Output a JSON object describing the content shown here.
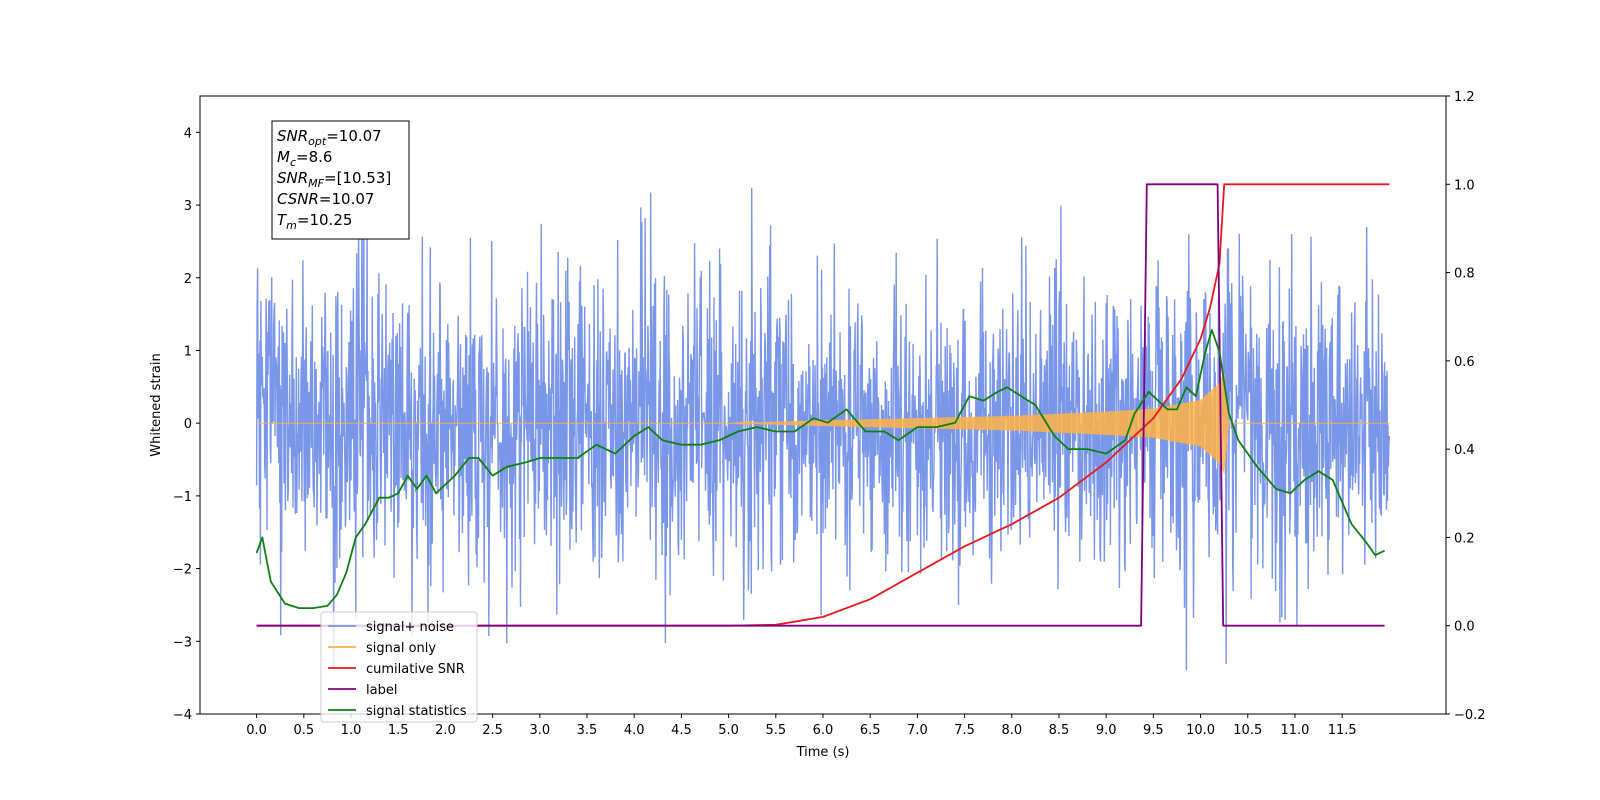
{
  "chart_data": {
    "type": "line",
    "xlabel": "Time (s)",
    "ylabel": "Whitened strain",
    "xlim": [
      -0.6,
      12.6
    ],
    "ylim": [
      -4,
      4.5
    ],
    "y2lim": [
      -0.2,
      1.2
    ],
    "x_ticks": [
      "0.0",
      "0.5",
      "1.0",
      "1.5",
      "2.0",
      "2.5",
      "3.0",
      "3.5",
      "4.0",
      "4.5",
      "5.0",
      "5.5",
      "6.0",
      "6.5",
      "7.0",
      "7.5",
      "8.0",
      "8.5",
      "9.0",
      "9.5",
      "10.0",
      "10.5",
      "11.0",
      "11.5"
    ],
    "y_ticks": [
      "4",
      "3",
      "2",
      "1",
      "0",
      "−1",
      "−2",
      "−3",
      "−4"
    ],
    "y2_ticks": [
      "1.2",
      "1.0",
      "0.8",
      "0.6",
      "0.4",
      "0.2",
      "0.0",
      "−0.2"
    ],
    "grid": false,
    "legend_position": "lower-left",
    "annotation": {
      "lines": [
        {
          "base": "SNR",
          "sub": "opt",
          "rest": "=10.07"
        },
        {
          "base": "M",
          "sub": "c",
          "rest": "=8.6"
        },
        {
          "base": "SNR",
          "sub": "MF",
          "rest": "=[10.53]"
        },
        {
          "base": "CSNR",
          "sub": "",
          "rest": "=10.07"
        },
        {
          "base": "T",
          "sub": "m",
          "rest": "=10.25"
        }
      ]
    },
    "series": [
      {
        "name": "signal+ noise",
        "color": "#7a96e8",
        "axis": "left",
        "description": "whitened noise, roughly ±1 sigma with peaks to about ±3.5",
        "x_range": [
          0,
          12
        ],
        "amplitude_sigma": 1.0
      },
      {
        "name": "signal only",
        "color": "#ffb347",
        "axis": "left",
        "description": "chirp growing from 0 to about ±0.7 at 10.25 s, then ringdown",
        "x": [
          0,
          5.0,
          6.0,
          7.0,
          8.0,
          9.0,
          9.5,
          10.0,
          10.2,
          10.25,
          10.3,
          12.0
        ],
        "envelope": [
          0.0,
          0.0,
          0.04,
          0.07,
          0.1,
          0.16,
          0.2,
          0.32,
          0.55,
          0.7,
          0.0,
          0.0
        ]
      },
      {
        "name": "cumilative SNR",
        "color": "#e8191c",
        "axis": "right",
        "x": [
          0,
          5.0,
          5.5,
          6.0,
          6.5,
          7.0,
          7.5,
          8.0,
          8.5,
          9.0,
          9.5,
          9.8,
          10.0,
          10.1,
          10.2,
          10.25,
          12.0
        ],
        "y": [
          0.0,
          0.0,
          0.002,
          0.02,
          0.06,
          0.12,
          0.18,
          0.23,
          0.29,
          0.37,
          0.47,
          0.56,
          0.65,
          0.72,
          0.82,
          1.0,
          1.0
        ]
      },
      {
        "name": "label",
        "color": "#800080",
        "axis": "right",
        "x": [
          0,
          9.37,
          9.43,
          10.18,
          10.24,
          11.95
        ],
        "y": [
          0.0,
          0.0,
          1.0,
          1.0,
          0.0,
          0.0
        ]
      },
      {
        "name": "signal statistics",
        "color": "#108010",
        "axis": "right",
        "x": [
          0.0,
          0.06,
          0.15,
          0.3,
          0.45,
          0.6,
          0.75,
          0.85,
          0.95,
          1.05,
          1.15,
          1.3,
          1.4,
          1.5,
          1.6,
          1.7,
          1.8,
          1.9,
          2.0,
          2.1,
          2.25,
          2.35,
          2.5,
          2.65,
          2.85,
          3.0,
          3.2,
          3.4,
          3.6,
          3.8,
          4.0,
          4.15,
          4.3,
          4.5,
          4.7,
          4.9,
          5.1,
          5.3,
          5.5,
          5.7,
          5.9,
          6.05,
          6.25,
          6.45,
          6.65,
          6.8,
          7.0,
          7.2,
          7.4,
          7.55,
          7.7,
          7.85,
          7.95,
          8.1,
          8.25,
          8.45,
          8.6,
          8.8,
          9.0,
          9.2,
          9.3,
          9.45,
          9.55,
          9.65,
          9.75,
          9.85,
          9.95,
          10.05,
          10.12,
          10.2,
          10.3,
          10.4,
          10.6,
          10.8,
          10.95,
          11.1,
          11.25,
          11.4,
          11.6,
          11.75,
          11.85,
          11.95
        ],
        "y": [
          0.165,
          0.2,
          0.1,
          0.05,
          0.04,
          0.04,
          0.045,
          0.07,
          0.12,
          0.2,
          0.23,
          0.29,
          0.29,
          0.3,
          0.34,
          0.31,
          0.34,
          0.3,
          0.32,
          0.34,
          0.38,
          0.38,
          0.34,
          0.36,
          0.37,
          0.38,
          0.38,
          0.38,
          0.41,
          0.39,
          0.43,
          0.45,
          0.42,
          0.41,
          0.41,
          0.42,
          0.44,
          0.45,
          0.44,
          0.44,
          0.47,
          0.46,
          0.49,
          0.44,
          0.44,
          0.42,
          0.45,
          0.45,
          0.46,
          0.52,
          0.51,
          0.53,
          0.54,
          0.52,
          0.5,
          0.43,
          0.4,
          0.4,
          0.39,
          0.42,
          0.48,
          0.53,
          0.51,
          0.49,
          0.49,
          0.54,
          0.52,
          0.62,
          0.67,
          0.62,
          0.48,
          0.42,
          0.36,
          0.31,
          0.3,
          0.33,
          0.35,
          0.33,
          0.23,
          0.19,
          0.16,
          0.17
        ]
      }
    ]
  }
}
